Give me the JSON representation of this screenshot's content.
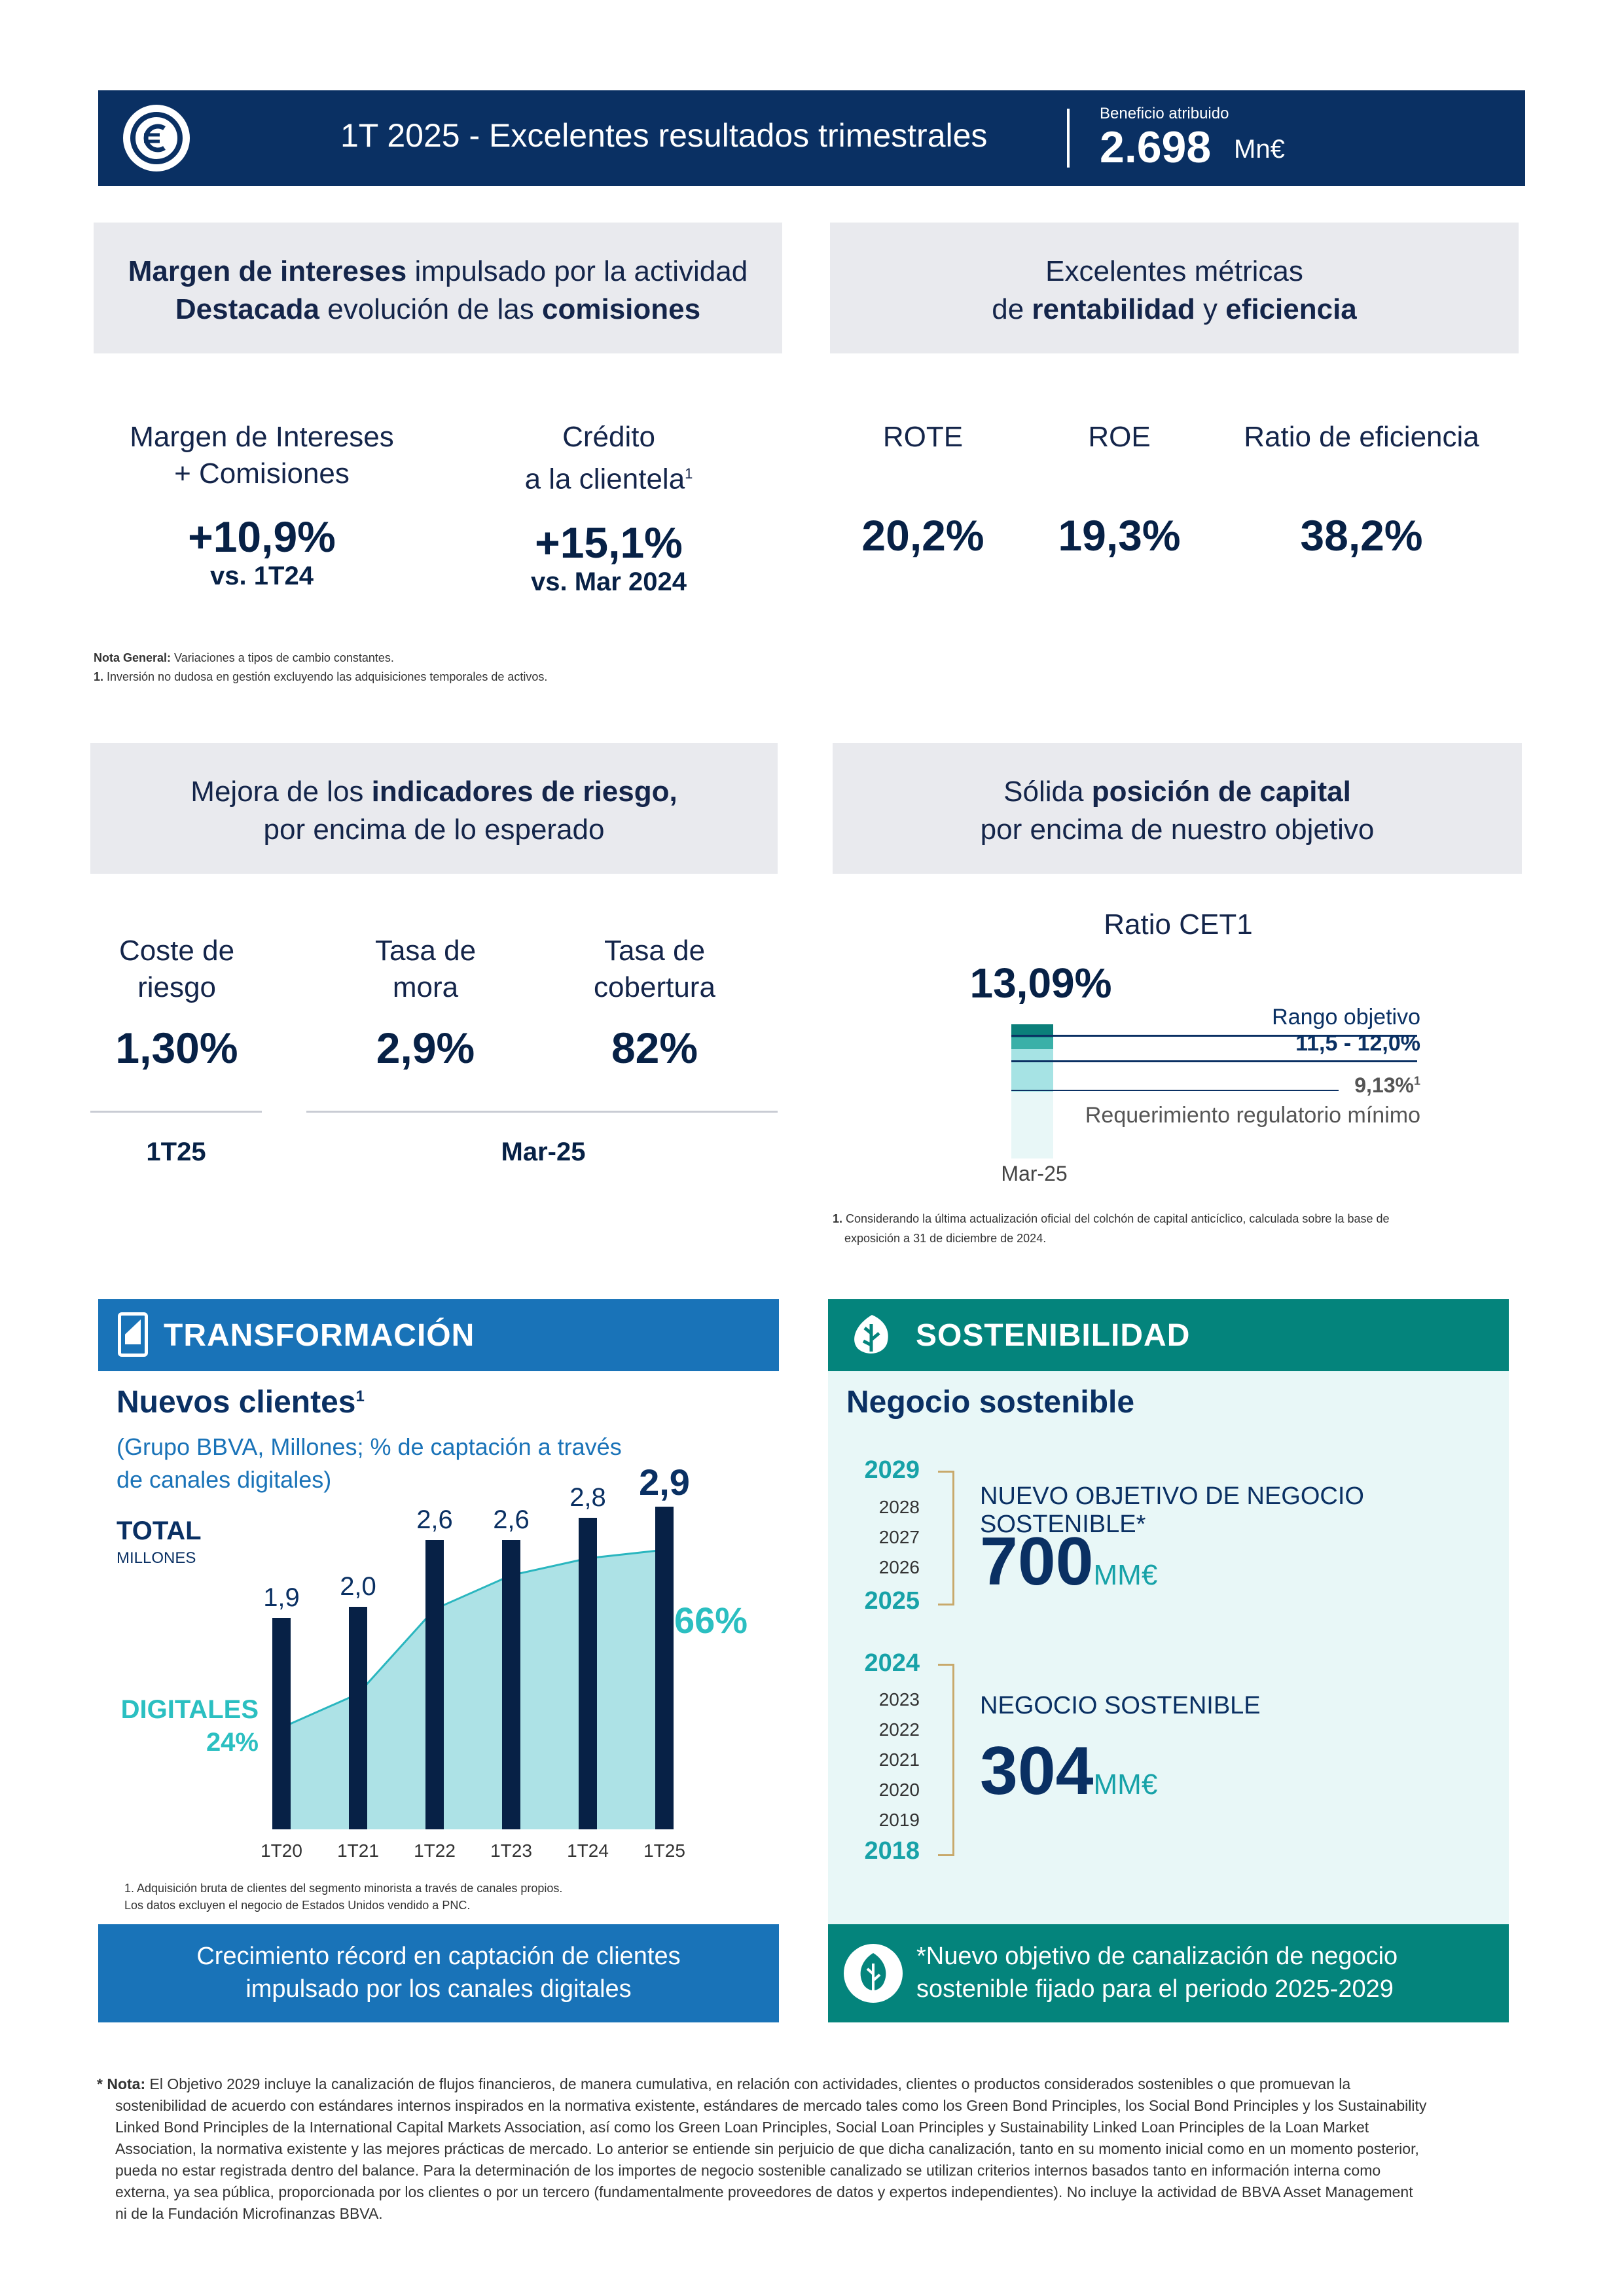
{
  "header": {
    "title": "1T 2025 - Excelentes resultados trimestrales",
    "profit_label": "Beneficio atribuido",
    "profit_value": "2.698",
    "profit_unit": "Mn€"
  },
  "box1": {
    "a": "Margen de intereses",
    "b": " impulsado por la actividad",
    "c": "Destacada",
    "d": " evolución de las ",
    "e": "comisiones"
  },
  "box2": {
    "a": "Excelentes métricas",
    "b": "de ",
    "c": "rentabilidad",
    "d": " y ",
    "e": "eficiencia"
  },
  "metrics1": [
    {
      "l1": "Margen de Intereses",
      "l2": "+ Comisiones",
      "value": "+10,9%",
      "sub": "vs. 1T24"
    },
    {
      "l1": "Crédito",
      "l2": "a la clientela",
      "sup": "1",
      "value": "+15,1%",
      "sub": "vs. Mar 2024"
    }
  ],
  "metrics2": [
    {
      "label": "ROTE",
      "value": "20,2%"
    },
    {
      "label": "ROE",
      "value": "19,3%"
    },
    {
      "label": "Ratio de eficiencia",
      "value": "38,2%"
    }
  ],
  "notes1": {
    "general_bold": "Nota General:",
    "general": " Variaciones a tipos de cambio constantes.",
    "n1_bold": "1.",
    "n1": " Inversión no dudosa en gestión excluyendo las adquisiciones temporales de activos."
  },
  "box3": {
    "a": "Mejora de los ",
    "b": "indicadores de riesgo,",
    "c": "por encima de lo esperado"
  },
  "box4": {
    "a": "Sólida ",
    "b": "posición de capital",
    "c": "por encima de nuestro objetivo"
  },
  "risk": [
    {
      "l1": "Coste de",
      "l2": "riesgo",
      "value": "1,30%"
    },
    {
      "l1": "Tasa de",
      "l2": "mora",
      "value": "2,9%"
    },
    {
      "l1": "Tasa de",
      "l2": "cobertura",
      "value": "82%"
    }
  ],
  "risk_periods": {
    "p1": "1T25",
    "p2": "Mar-25"
  },
  "cet1": {
    "title": "Ratio CET1",
    "value": "13,09%",
    "range_label": "Rango objetivo",
    "range_value": "11,5 - 12,0%",
    "req_value": "9,13%",
    "req_sup": "1",
    "req_label": "Requerimiento regulatorio mínimo",
    "period": "Mar-25",
    "note_bold": "1.",
    "note": " Considerando la última actualización oficial del colchón de capital anticíclico, calculada sobre la base de",
    "note2": "exposición a 31 de diciembre de 2024."
  },
  "transformacion": {
    "title": "TRANSFORMACIÓN",
    "subtitle": "Nuevos clientes",
    "sub_sup": "1",
    "desc1": "(Grupo BBVA, Millones; % de captación a través",
    "desc2": "de canales digitales)",
    "total_label": "TOTAL",
    "total_unit": "MILLONES",
    "digital_label": "DIGITALES",
    "digital_start": "24%",
    "digital_end": "66%",
    "note1": "1. Adquisición bruta de clientes del segmento minorista a través de canales propios.",
    "note2": "Los datos excluyen el negocio de Estados Unidos vendido a PNC.",
    "footer1": "Crecimiento récord en captación de clientes",
    "footer2": "impulsado por los canales digitales"
  },
  "chart_data": {
    "type": "bar",
    "categories": [
      "1T20",
      "1T21",
      "1T22",
      "1T23",
      "1T24",
      "1T25"
    ],
    "series": [
      {
        "values": [
          1.9,
          2.0,
          2.6,
          2.6,
          2.8,
          2.9
        ]
      }
    ],
    "value_labels": [
      "1,9",
      "2,0",
      "2,6",
      "2,6",
      "2,8",
      "2,9"
    ],
    "area_labels": [
      "24%",
      "66%"
    ],
    "colors": {
      "bar": "#072146",
      "area": "#9fdde2",
      "area_line": "#2ab6bf"
    }
  },
  "sostenibilidad": {
    "title": "SOSTENIBILIDAD",
    "subtitle": "Negocio sostenible",
    "years_top": [
      "2029",
      "2028",
      "2027",
      "2026",
      "2025"
    ],
    "years_bottom": [
      "2024",
      "2023",
      "2022",
      "2021",
      "2020",
      "2019",
      "2018"
    ],
    "obj_label": "NUEVO OBJETIVO DE NEGOCIO SOSTENIBLE*",
    "obj_value": "700",
    "obj_unit": "MM€",
    "neg_label": "NEGOCIO SOSTENIBLE",
    "neg_value": "304",
    "neg_unit": "MM€",
    "footer1": "*Nuevo objetivo de canalización de negocio",
    "footer2": "sostenible fijado para el periodo 2025-2029"
  },
  "bottom_note": {
    "star": "*",
    "bold": "Nota:",
    "lines": [
      " El Objetivo 2029 incluye la canalización de flujos financieros, de manera cumulativa, en relación con actividades, clientes o productos considerados sostenibles o que promuevan la",
      "sostenibilidad de acuerdo con estándares internos inspirados en la normativa existente, estándares de mercado tales como los Green Bond Principles, los Social Bond Principles y los Sustainability",
      "Linked Bond Principles de la International Capital Markets Association, así como los Green Loan Principles, Social Loan Principles y Sustainability Linked Loan Principles de la Loan Market",
      "Association, la normativa existente y las mejores prácticas de mercado. Lo anterior se entiende sin perjuicio de que dicha canalización, tanto en su momento inicial como en un momento posterior,",
      "pueda no estar registrada dentro del balance. Para la determinación de los importes de negocio sostenible canalizado se utilizan criterios internos basados tanto en información interna como",
      "externa, ya sea pública, proporcionada por los clientes o por un tercero (fundamentalmente proveedores de datos y expertos independientes). No incluye la actividad de BBVA Asset Management",
      "ni de la Fundación Microfinanzas BBVA."
    ]
  }
}
